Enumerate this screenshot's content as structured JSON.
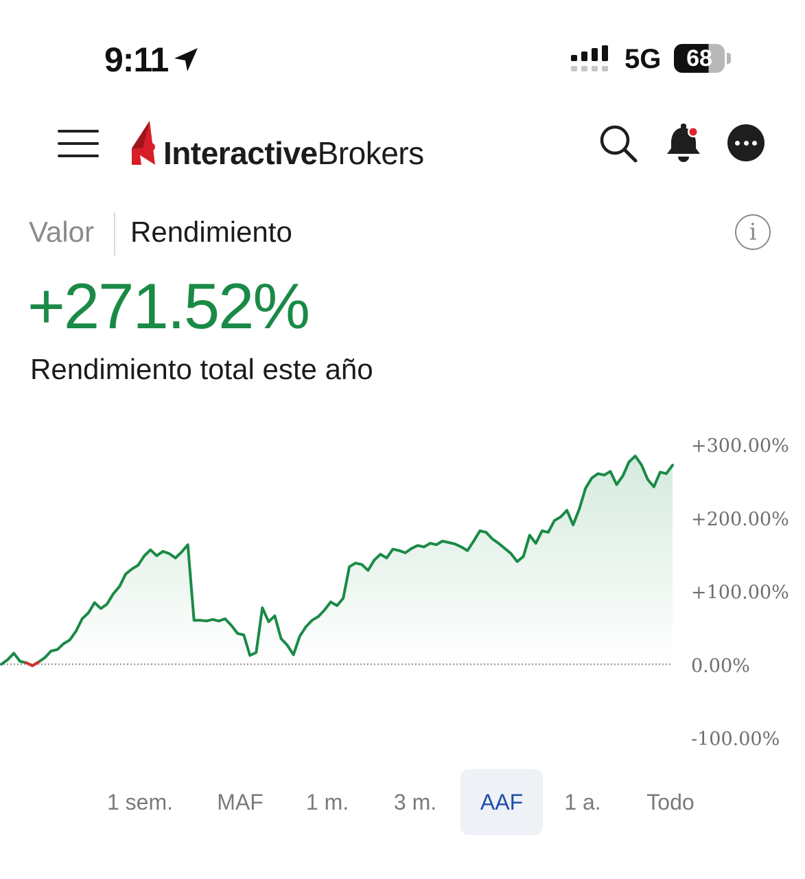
{
  "status_bar": {
    "time": "9:11",
    "network": "5G",
    "battery": "68"
  },
  "header": {
    "brand_bold": "Interactive",
    "brand_regular": "Brokers",
    "brand_color": "#d71e28",
    "icons": [
      "menu-icon",
      "search-icon",
      "bell-icon",
      "more-icon"
    ]
  },
  "tabs": [
    {
      "label": "Valor",
      "active": false
    },
    {
      "label": "Rendimiento",
      "active": true
    }
  ],
  "summary": {
    "value": "+271.52%",
    "label": "Rendimiento total este año",
    "value_color": "#1a8a46"
  },
  "range_selector": [
    {
      "label": "1 sem.",
      "active": false
    },
    {
      "label": "MAF",
      "active": false
    },
    {
      "label": "1 m.",
      "active": false
    },
    {
      "label": "3 m.",
      "active": false
    },
    {
      "label": "AAF",
      "active": true
    },
    {
      "label": "1 a.",
      "active": false
    },
    {
      "label": "Todo",
      "active": false
    }
  ],
  "chart_data": {
    "type": "area",
    "ylim": [
      -100,
      300
    ],
    "yticks": [
      300,
      200,
      100,
      0,
      -100
    ],
    "ytick_labels": [
      "+300.00%",
      "+200.00%",
      "+100.00%",
      "0.00%",
      "-100.00%"
    ],
    "baseline": 0,
    "positive_color": "#1a8a46",
    "negative_color": "#d0312d",
    "grid": false,
    "series": [
      {
        "values": [
          0,
          6,
          15,
          4,
          2,
          -2,
          3,
          9,
          18,
          20,
          28,
          33,
          45,
          62,
          70,
          84,
          76,
          82,
          96,
          106,
          123,
          130,
          135,
          148,
          156,
          148,
          154,
          151,
          145,
          153,
          163,
          60,
          60,
          59,
          61,
          59,
          62,
          53,
          42,
          40,
          12,
          16,
          77,
          58,
          66,
          35,
          26,
          13,
          38,
          51,
          60,
          65,
          74,
          85,
          80,
          90,
          133,
          138,
          136,
          128,
          142,
          150,
          145,
          157,
          155,
          152,
          158,
          162,
          160,
          165,
          163,
          168,
          166,
          164,
          160,
          155,
          168,
          182,
          180,
          171,
          165,
          158,
          151,
          140,
          147,
          176,
          165,
          182,
          180,
          196,
          201,
          210,
          190,
          212,
          240,
          254,
          260,
          258,
          263,
          245,
          257,
          276,
          284,
          272,
          252,
          242,
          262,
          260,
          271.52
        ]
      }
    ]
  }
}
